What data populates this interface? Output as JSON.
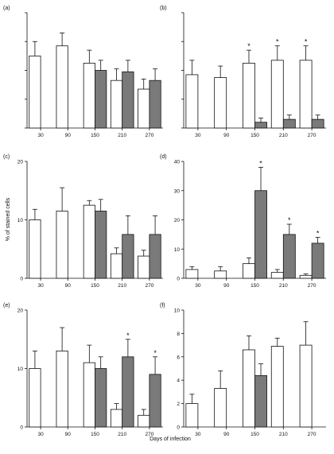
{
  "figure": {
    "ylabel": "% of stained cells",
    "xlabel": "Days of infection"
  },
  "chart_data": [
    {
      "type": "bar",
      "panel_label": "(a)",
      "categories": [
        "30",
        "90",
        "150",
        "210",
        "270"
      ],
      "ylim": [
        0,
        80
      ],
      "yticks": [],
      "grid": false,
      "series": [
        {
          "fill": "#ffffff",
          "values": [
            50,
            57,
            45,
            33,
            27
          ],
          "errors": [
            10,
            9,
            9,
            8,
            7
          ],
          "significant": [
            false,
            false,
            false,
            false,
            false
          ]
        },
        {
          "fill": "#7a7a7a",
          "values": [
            null,
            null,
            40,
            39,
            33
          ],
          "errors": [
            null,
            null,
            7,
            8,
            8
          ],
          "significant": [
            false,
            false,
            false,
            false,
            false
          ]
        }
      ]
    },
    {
      "type": "bar",
      "panel_label": "(b)",
      "categories": [
        "30",
        "90",
        "150",
        "210",
        "270"
      ],
      "ylim": [
        0,
        80
      ],
      "yticks": [],
      "grid": false,
      "series": [
        {
          "fill": "#ffffff",
          "values": [
            37,
            35,
            45,
            47,
            47
          ],
          "errors": [
            10,
            8,
            9,
            10,
            10
          ],
          "significant": [
            false,
            false,
            true,
            true,
            true
          ]
        },
        {
          "fill": "#7a7a7a",
          "values": [
            null,
            null,
            4,
            6,
            6
          ],
          "errors": [
            null,
            null,
            3,
            3,
            3
          ],
          "significant": [
            false,
            false,
            false,
            false,
            false
          ]
        }
      ]
    },
    {
      "type": "bar",
      "panel_label": "(c)",
      "categories": [
        "30",
        "90",
        "150",
        "210",
        "270"
      ],
      "ylim": [
        0,
        20
      ],
      "yticks": [
        "0",
        "10",
        "20"
      ],
      "grid": false,
      "series": [
        {
          "fill": "#ffffff",
          "values": [
            10,
            11.5,
            12.5,
            4.2,
            3.8
          ],
          "errors": [
            1.8,
            4,
            0.8,
            1,
            1
          ],
          "significant": [
            false,
            false,
            false,
            false,
            false
          ]
        },
        {
          "fill": "#7a7a7a",
          "values": [
            null,
            null,
            11.5,
            7.5,
            7.5
          ],
          "errors": [
            null,
            null,
            2,
            3.2,
            3.2
          ],
          "significant": [
            false,
            false,
            false,
            false,
            false
          ]
        }
      ]
    },
    {
      "type": "bar",
      "panel_label": "(d)",
      "categories": [
        "30",
        "90",
        "150",
        "210",
        "270"
      ],
      "ylim": [
        0,
        40
      ],
      "yticks": [
        "0",
        "10",
        "20",
        "30",
        "40"
      ],
      "grid": false,
      "series": [
        {
          "fill": "#ffffff",
          "values": [
            3,
            2.5,
            5,
            2,
            1
          ],
          "errors": [
            1,
            1.5,
            2,
            1,
            0.5
          ],
          "significant": [
            false,
            false,
            false,
            false,
            false
          ]
        },
        {
          "fill": "#7a7a7a",
          "values": [
            null,
            null,
            30,
            15,
            12
          ],
          "errors": [
            null,
            null,
            8,
            3.5,
            2
          ],
          "significant": [
            false,
            false,
            true,
            true,
            true
          ]
        }
      ]
    },
    {
      "type": "bar",
      "panel_label": "(e)",
      "categories": [
        "30",
        "90",
        "150",
        "210",
        "270"
      ],
      "ylim": [
        0,
        20
      ],
      "yticks": [
        "0",
        "10",
        "20"
      ],
      "grid": false,
      "series": [
        {
          "fill": "#ffffff",
          "values": [
            10,
            13,
            11,
            3,
            2
          ],
          "errors": [
            3,
            4,
            3,
            1,
            1
          ],
          "significant": [
            false,
            false,
            false,
            false,
            false
          ]
        },
        {
          "fill": "#7a7a7a",
          "values": [
            null,
            null,
            10,
            12,
            9
          ],
          "errors": [
            null,
            null,
            2,
            3,
            3
          ],
          "significant": [
            false,
            false,
            false,
            true,
            true
          ]
        }
      ]
    },
    {
      "type": "bar",
      "panel_label": "(f)",
      "categories": [
        "30",
        "90",
        "150",
        "210",
        "270"
      ],
      "ylim": [
        0,
        10
      ],
      "yticks": [
        "0",
        "2",
        "4",
        "6",
        "8",
        "10"
      ],
      "grid": false,
      "series": [
        {
          "fill": "#ffffff",
          "values": [
            2,
            3.3,
            6.6,
            6.9,
            7
          ],
          "errors": [
            0.8,
            1.5,
            1.2,
            0.7,
            2
          ],
          "significant": [
            false,
            false,
            false,
            false,
            false
          ]
        },
        {
          "fill": "#7a7a7a",
          "values": [
            null,
            null,
            4.4,
            null,
            null
          ],
          "errors": [
            null,
            null,
            1,
            null,
            null
          ],
          "significant": [
            false,
            false,
            false,
            false,
            false
          ]
        }
      ]
    }
  ]
}
